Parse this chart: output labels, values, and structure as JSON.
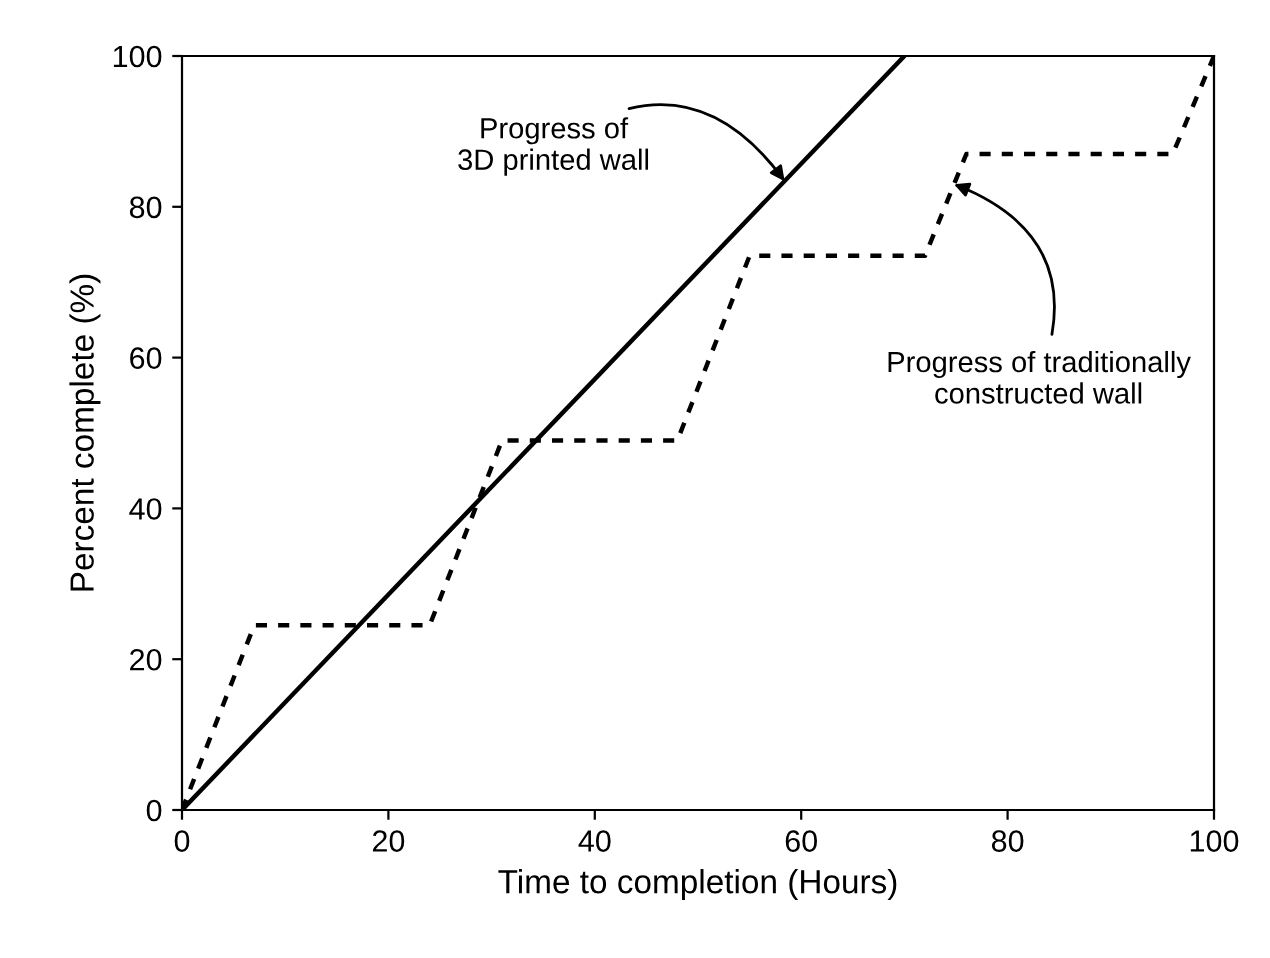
{
  "chart_data": {
    "type": "line",
    "xlabel": "Time to completion (Hours)",
    "ylabel": "Percent complete (%)",
    "xlim": [
      0,
      100
    ],
    "ylim": [
      0,
      100
    ],
    "xticks": [
      0,
      20,
      40,
      60,
      80,
      100
    ],
    "yticks": [
      0,
      20,
      40,
      60,
      80,
      100
    ],
    "grid": false,
    "marker": "none",
    "series": [
      {
        "color": "#000000",
        "line_style": "solid",
        "x": [
          0,
          70
        ],
        "values": [
          0,
          100
        ]
      },
      {
        "color": "#000000",
        "line_style": "dotted",
        "x": [
          0,
          7,
          24,
          31,
          48,
          55,
          72,
          76,
          96,
          100
        ],
        "values": [
          0,
          24.5,
          24.5,
          49,
          49,
          73.5,
          73.5,
          87,
          87,
          100
        ]
      }
    ],
    "annotations": [
      {
        "text": "Progress of\n3D printed wall",
        "x": 58.4,
        "y": 83.4
      },
      {
        "text": "Progress of traditionally\nconstructed wall",
        "x": 74.8,
        "y": 83
      }
    ]
  }
}
